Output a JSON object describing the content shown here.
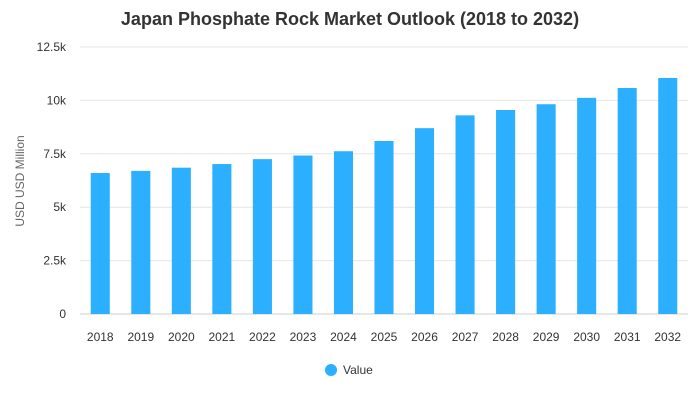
{
  "chart_data": {
    "type": "bar",
    "title": "Japan Phosphate Rock Market Outlook (2018 to 2032)",
    "xlabel": "",
    "ylabel": "USD USD Million",
    "categories": [
      "2018",
      "2019",
      "2020",
      "2021",
      "2022",
      "2023",
      "2024",
      "2025",
      "2026",
      "2027",
      "2028",
      "2029",
      "2030",
      "2031",
      "2032"
    ],
    "series": [
      {
        "name": "Value",
        "color": "#2caffe",
        "values": [
          6600,
          6700,
          6850,
          7020,
          7250,
          7420,
          7620,
          8100,
          8700,
          9300,
          9550,
          9820,
          10120,
          10580,
          11050
        ]
      }
    ],
    "ylim": [
      0,
      12500
    ],
    "yticks": [
      0,
      2500,
      5000,
      7500,
      10000,
      12500
    ],
    "ytick_labels": [
      "0",
      "2.5k",
      "5k",
      "7.5k",
      "10k",
      "12.5k"
    ],
    "grid": true,
    "legend": "bottom-center"
  }
}
